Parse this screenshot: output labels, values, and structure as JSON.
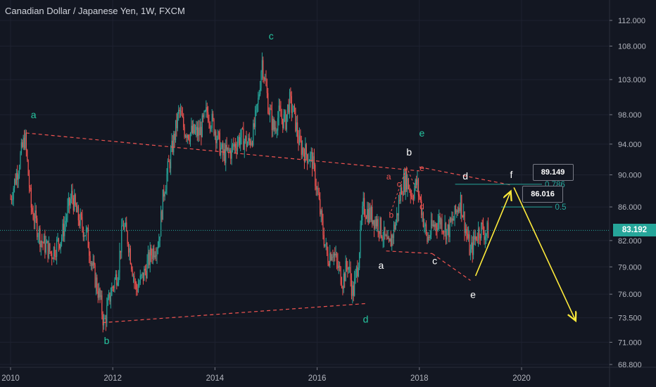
{
  "title": "Canadian Dollar / Japanese Yen, 1W, FXCM",
  "current_price": "83.192",
  "colors": {
    "background": "#131722",
    "up": "#26a69a",
    "down": "#ef5350",
    "last_price": "#26a69a",
    "trendline": "#ef5350",
    "projection": "#ffeb3b",
    "wave_green": "#26c6a0",
    "wave_white": "#ffffff",
    "wave_red": "#ef5350"
  },
  "chart_data": {
    "type": "candlestick",
    "symbol": "CADJPY",
    "timeframe": "1W",
    "x_ticks": [
      "2010",
      "2012",
      "2014",
      "2016",
      "2018",
      "2020"
    ],
    "y_ticks": [
      "112.000",
      "108.000",
      "103.000",
      "98.000",
      "94.000",
      "90.000",
      "86.000",
      "82.000",
      "79.000",
      "76.000",
      "73.500",
      "71.000",
      "68.800"
    ],
    "y_range": [
      68.8,
      112.0
    ],
    "y_scale": "log",
    "x_range": [
      2010.0,
      2022.0
    ],
    "last_price": 83.192,
    "close_path": [
      [
        2010.0,
        87.0
      ],
      [
        2010.15,
        91.0
      ],
      [
        2010.28,
        95.0
      ],
      [
        2010.4,
        86.0
      ],
      [
        2010.6,
        82.0
      ],
      [
        2010.8,
        80.5
      ],
      [
        2011.0,
        82.5
      ],
      [
        2011.2,
        87.5
      ],
      [
        2011.3,
        85.0
      ],
      [
        2011.5,
        82.5
      ],
      [
        2011.6,
        79.0
      ],
      [
        2011.75,
        75.5
      ],
      [
        2011.83,
        72.8
      ],
      [
        2011.95,
        76.0
      ],
      [
        2012.1,
        78.5
      ],
      [
        2012.2,
        84.0
      ],
      [
        2012.3,
        82.0
      ],
      [
        2012.45,
        76.5
      ],
      [
        2012.6,
        78.0
      ],
      [
        2012.75,
        80.5
      ],
      [
        2012.9,
        82.0
      ],
      [
        2013.0,
        88.0
      ],
      [
        2013.15,
        93.0
      ],
      [
        2013.3,
        98.5
      ],
      [
        2013.4,
        96.0
      ],
      [
        2013.5,
        95.5
      ],
      [
        2013.7,
        95.5
      ],
      [
        2013.85,
        98.5
      ],
      [
        2014.0,
        96.0
      ],
      [
        2014.15,
        92.5
      ],
      [
        2014.3,
        93.0
      ],
      [
        2014.5,
        95.0
      ],
      [
        2014.65,
        94.0
      ],
      [
        2014.75,
        95.5
      ],
      [
        2014.85,
        100.0
      ],
      [
        2014.92,
        106.0
      ],
      [
        2015.05,
        99.0
      ],
      [
        2015.15,
        96.0
      ],
      [
        2015.25,
        98.0
      ],
      [
        2015.38,
        97.0
      ],
      [
        2015.45,
        100.0
      ],
      [
        2015.55,
        98.0
      ],
      [
        2015.65,
        94.0
      ],
      [
        2015.75,
        93.0
      ],
      [
        2015.9,
        92.0
      ],
      [
        2016.0,
        88.0
      ],
      [
        2016.1,
        83.5
      ],
      [
        2016.2,
        80.0
      ],
      [
        2016.3,
        81.0
      ],
      [
        2016.4,
        79.0
      ],
      [
        2016.5,
        77.5
      ],
      [
        2016.6,
        79.5
      ],
      [
        2016.7,
        76.0
      ],
      [
        2016.8,
        79.5
      ],
      [
        2016.9,
        86.0
      ],
      [
        2017.05,
        85.0
      ],
      [
        2017.2,
        84.0
      ],
      [
        2017.4,
        81.0
      ],
      [
        2017.55,
        84.5
      ],
      [
        2017.65,
        88.5
      ],
      [
        2017.75,
        89.5
      ],
      [
        2017.85,
        87.5
      ],
      [
        2017.95,
        89.0
      ],
      [
        2018.05,
        85.5
      ],
      [
        2018.15,
        82.0
      ],
      [
        2018.25,
        83.5
      ],
      [
        2018.4,
        84.5
      ],
      [
        2018.55,
        83.0
      ],
      [
        2018.7,
        85.0
      ],
      [
        2018.8,
        87.0
      ],
      [
        2018.9,
        83.5
      ],
      [
        2019.0,
        80.5
      ],
      [
        2019.1,
        82.5
      ],
      [
        2019.2,
        83.5
      ],
      [
        2019.3,
        82.8
      ],
      [
        2019.35,
        83.19
      ]
    ],
    "trendlines": [
      {
        "from": [
          2010.3,
          95.5
        ],
        "to": [
          2018.0,
          90.5
        ]
      },
      {
        "from": [
          2018.0,
          91.0
        ],
        "to": [
          2019.8,
          88.7
        ]
      },
      {
        "from": [
          2011.8,
          73.0
        ],
        "to": [
          2016.95,
          75.0
        ]
      },
      {
        "from": [
          2017.35,
          80.8
        ],
        "to": [
          2018.25,
          80.5
        ]
      },
      {
        "from": [
          2018.25,
          80.5
        ],
        "to": [
          2019.0,
          77.5
        ]
      }
    ],
    "fib_levels": [
      {
        "label": "0.786",
        "value": 88.8,
        "x_from": 2018.7,
        "x_to": 2020.4
      },
      {
        "label": "0.5",
        "value": 86.0,
        "x_from": 2019.6,
        "x_to": 2020.6
      }
    ],
    "callouts": [
      {
        "text": "89.149",
        "x": 2020.6,
        "y": 90.35
      },
      {
        "text": "86.016",
        "x": 2020.4,
        "y": 87.6
      }
    ],
    "projection": [
      {
        "from": [
          2019.1,
          78.0
        ],
        "to": [
          2019.78,
          87.8
        ]
      },
      {
        "from": [
          2019.85,
          88.4
        ],
        "to": [
          2021.05,
          73.3
        ]
      }
    ],
    "wave_labels": [
      {
        "text": "a",
        "x": 2010.45,
        "y": 97.5,
        "color": "green"
      },
      {
        "text": "b",
        "x": 2011.88,
        "y": 70.8,
        "color": "green"
      },
      {
        "text": "c",
        "x": 2015.1,
        "y": 109.0,
        "color": "green"
      },
      {
        "text": "d",
        "x": 2016.95,
        "y": 73.0,
        "color": "green"
      },
      {
        "text": "e",
        "x": 2018.05,
        "y": 95.0,
        "color": "green"
      },
      {
        "text": "a",
        "x": 2017.25,
        "y": 78.8,
        "color": "white"
      },
      {
        "text": "b",
        "x": 2017.8,
        "y": 92.5,
        "color": "white"
      },
      {
        "text": "c",
        "x": 2018.3,
        "y": 79.3,
        "color": "white"
      },
      {
        "text": "d",
        "x": 2018.9,
        "y": 89.4,
        "color": "white"
      },
      {
        "text": "e",
        "x": 2019.05,
        "y": 75.6,
        "color": "white"
      },
      {
        "text": "f",
        "x": 2019.8,
        "y": 89.6,
        "color": "white"
      },
      {
        "text": "a",
        "x": 2017.4,
        "y": 89.4,
        "color": "red"
      },
      {
        "text": "b",
        "x": 2017.45,
        "y": 84.7,
        "color": "red"
      },
      {
        "text": "c",
        "x": 2017.6,
        "y": 88.5,
        "color": "red"
      },
      {
        "text": "d",
        "x": 2018.05,
        "y": 85.7,
        "color": "red"
      },
      {
        "text": "e",
        "x": 2018.05,
        "y": 90.5,
        "color": "red"
      }
    ]
  }
}
